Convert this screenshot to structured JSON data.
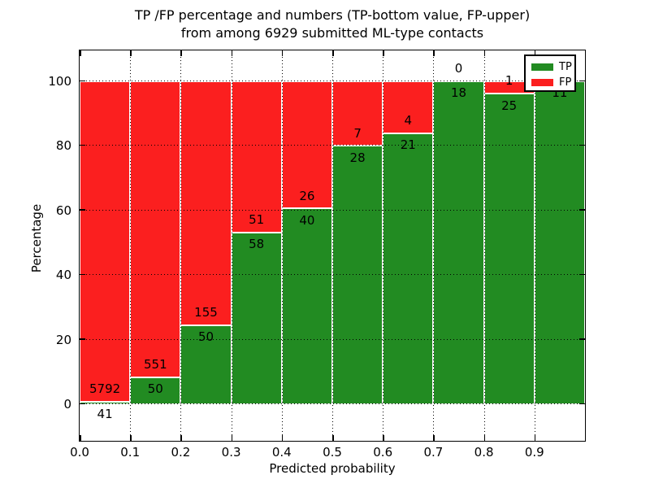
{
  "chart_data": {
    "type": "bar",
    "stacked": true,
    "title": "TP /FP percentage and numbers (TP-bottom value, FP-upper)",
    "subtitle": "from among 6929 submitted ML-type contacts",
    "xlabel": "Predicted probability",
    "ylabel": "Percentage",
    "total_submitted": 6929,
    "xtick_labels": [
      "0.0",
      "0.1",
      "0.2",
      "0.3",
      "0.4",
      "0.5",
      "0.6",
      "0.7",
      "0.8",
      "0.9"
    ],
    "ytick_values": [
      0,
      20,
      40,
      60,
      80,
      100
    ],
    "xlim": [
      0.0,
      1.0
    ],
    "ylim": [
      -11.3,
      109.7
    ],
    "grid": "dotted-both-axes",
    "colors": {
      "tp": "#228b22",
      "fp": "#fb1f1f"
    },
    "legend": {
      "position": "upper-right",
      "entries": [
        {
          "label": "TP",
          "color_key": "tp"
        },
        {
          "label": "FP",
          "color_key": "fp"
        }
      ]
    },
    "bars": [
      {
        "bin_start": 0.0,
        "bin_end": 0.1,
        "tp": 41,
        "fp": 5792,
        "tp_pct": 0.7
      },
      {
        "bin_start": 0.1,
        "bin_end": 0.2,
        "tp": 50,
        "fp": 551,
        "tp_pct": 8.32
      },
      {
        "bin_start": 0.2,
        "bin_end": 0.3,
        "tp": 50,
        "fp": 155,
        "tp_pct": 24.39
      },
      {
        "bin_start": 0.3,
        "bin_end": 0.4,
        "tp": 58,
        "fp": 51,
        "tp_pct": 53.21
      },
      {
        "bin_start": 0.4,
        "bin_end": 0.5,
        "tp": 40,
        "fp": 26,
        "tp_pct": 60.61
      },
      {
        "bin_start": 0.5,
        "bin_end": 0.6,
        "tp": 28,
        "fp": 7,
        "tp_pct": 80.0
      },
      {
        "bin_start": 0.6,
        "bin_end": 0.7,
        "tp": 21,
        "fp": 4,
        "tp_pct": 84.0
      },
      {
        "bin_start": 0.7,
        "bin_end": 0.8,
        "tp": 18,
        "fp": 0,
        "tp_pct": 100.0
      },
      {
        "bin_start": 0.8,
        "bin_end": 0.9,
        "tp": 25,
        "fp": 1,
        "tp_pct": 96.15
      },
      {
        "bin_start": 0.9,
        "bin_end": 1.0,
        "tp": 11,
        "fp": 0,
        "tp_pct": 100.0
      }
    ]
  }
}
